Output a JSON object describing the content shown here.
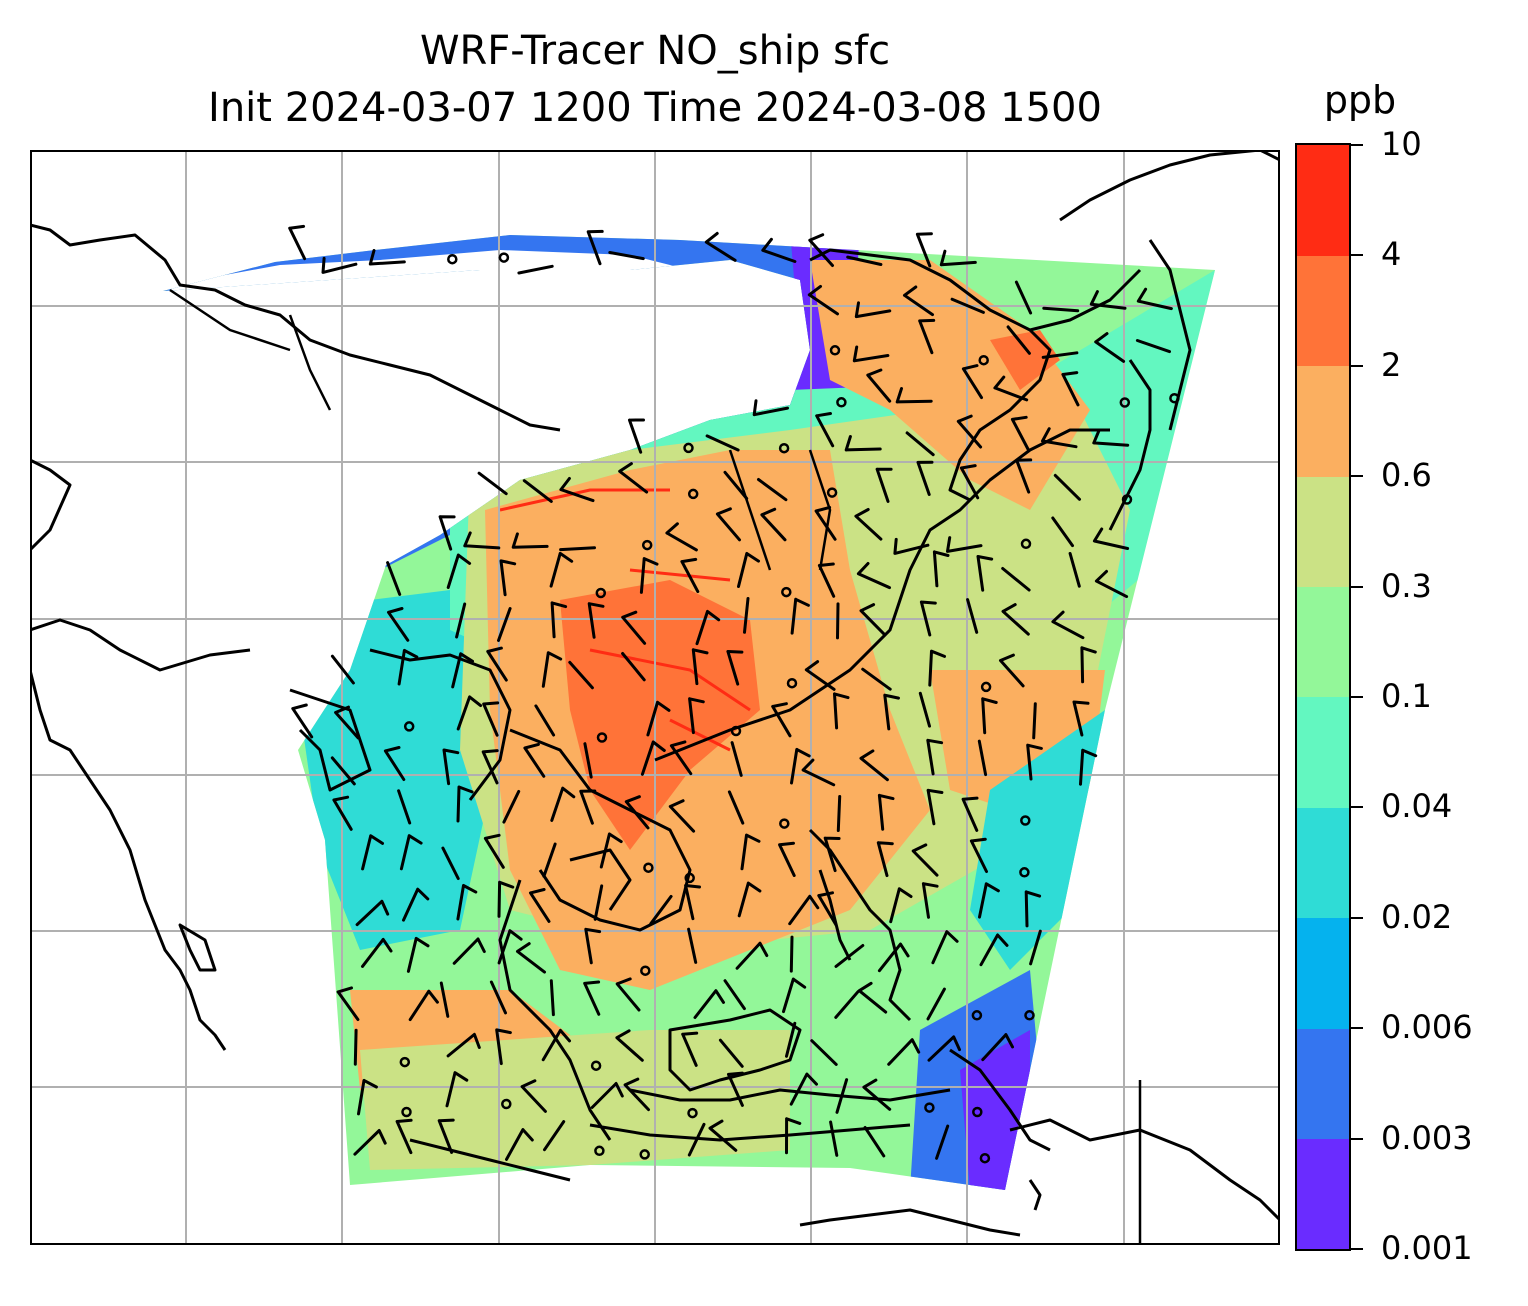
{
  "title_line1": "WRF-Tracer NO_ship sfc",
  "title_line2": "Init 2024-03-07 1200 Time 2024-03-08 1500",
  "colorbar": {
    "unit": "ppb",
    "tick_labels": [
      "0.001",
      "0.003",
      "0.006",
      "0.02",
      "0.04",
      "0.1",
      "0.3",
      "0.6",
      "2",
      "4",
      "10"
    ],
    "colors": [
      "#6a2cff",
      "#3475f0",
      "#05b2ee",
      "#2fdcd6",
      "#63f7c0",
      "#93f799",
      "#cbe285",
      "#fbaf60",
      "#ff7338",
      "#ff2c14"
    ],
    "orientation": "vertical, right of map"
  },
  "map": {
    "field": "NO_ship surface concentration",
    "overlays": [
      "coastlines",
      "country borders",
      "lat/lon gridlines (grey)",
      "wind barbs",
      "calm-wind circles"
    ],
    "white_region": "interior continental area with values below 0.001 ppb"
  }
}
